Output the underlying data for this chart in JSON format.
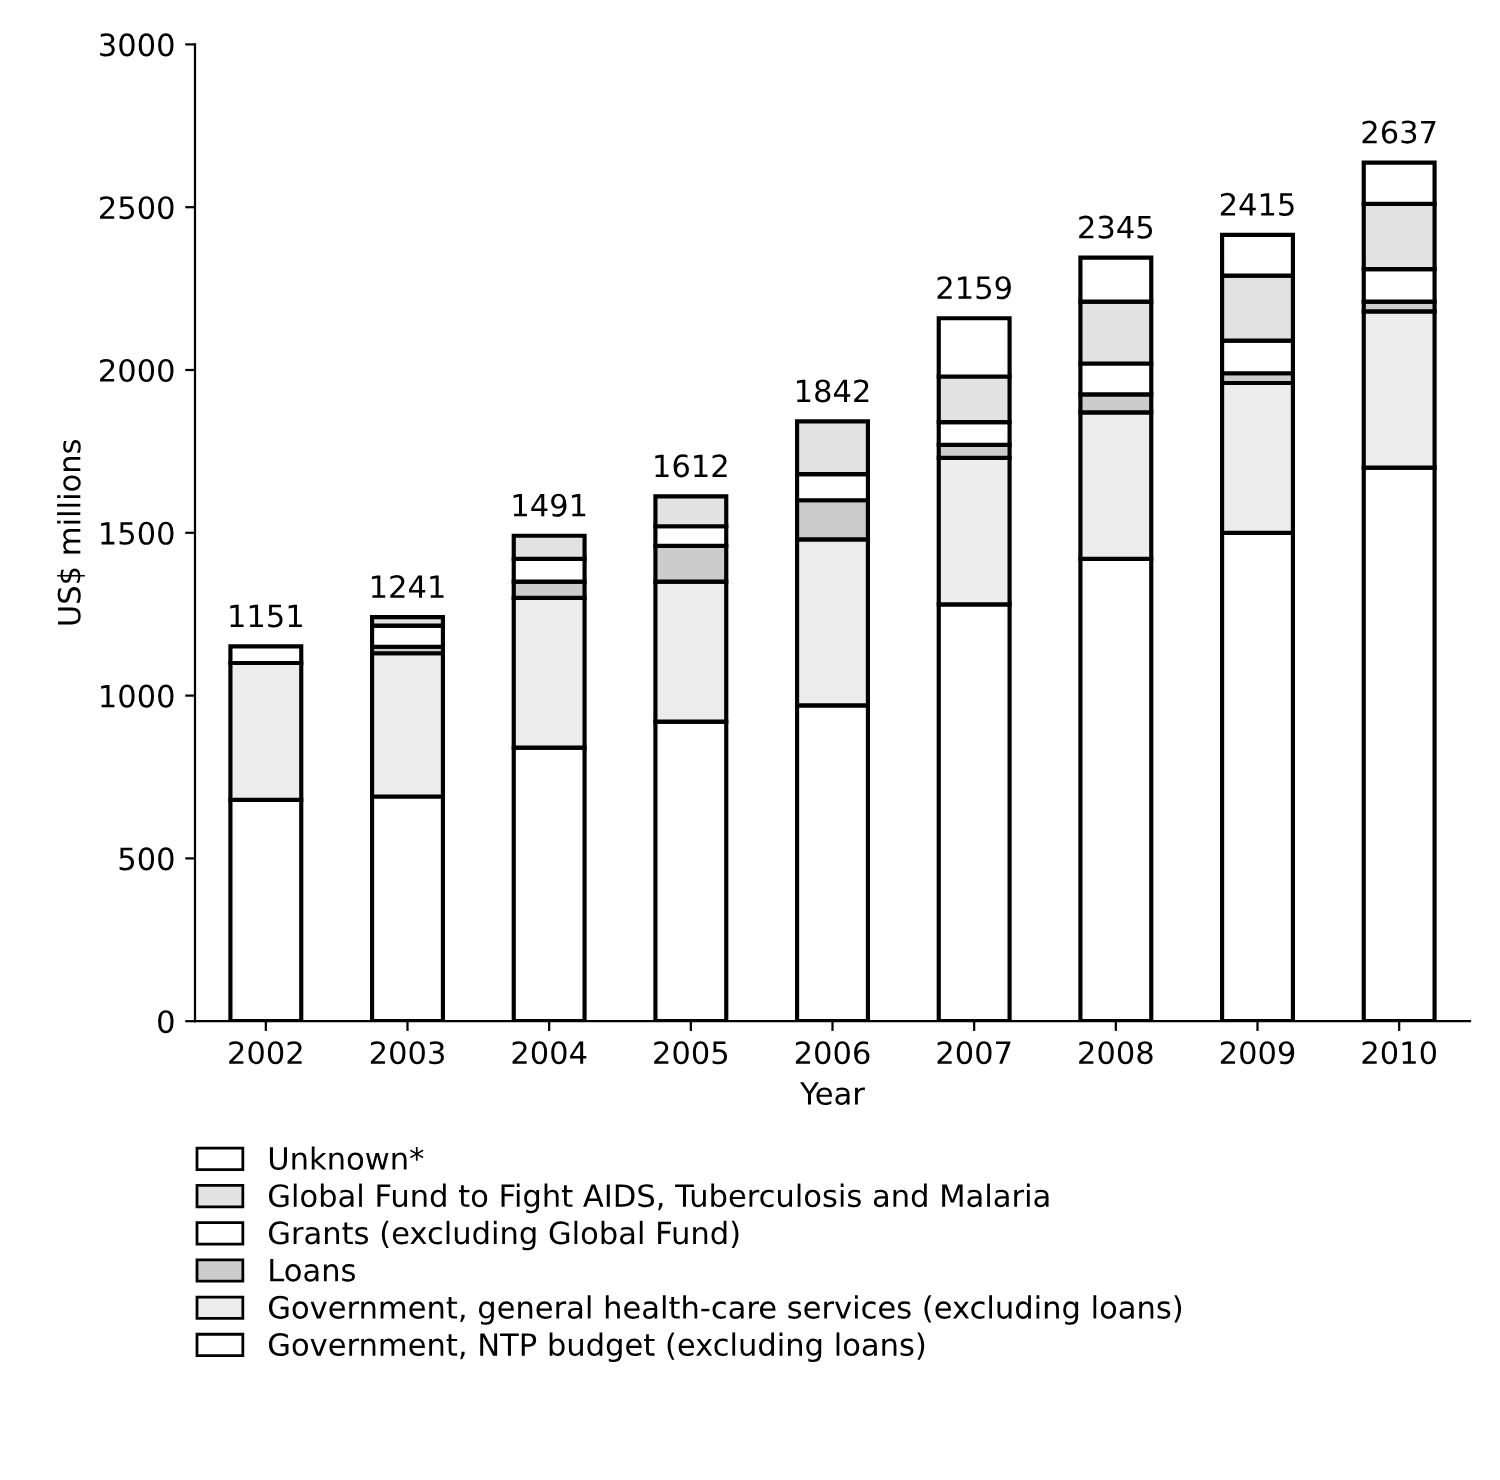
{
  "chart_data": {
    "type": "bar",
    "stacked": true,
    "xlabel": "Year",
    "ylabel": "US$ millions",
    "categories": [
      "2002",
      "2003",
      "2004",
      "2005",
      "2006",
      "2007",
      "2008",
      "2009",
      "2010"
    ],
    "series": [
      {
        "name": "Government, NTP budget (excluding loans)",
        "color": "#ffffff",
        "values": [
          680,
          690,
          840,
          920,
          970,
          1280,
          1420,
          1500,
          1700
        ]
      },
      {
        "name": "Government, general health-care services (excluding loans)",
        "color": "#ececec",
        "values": [
          420,
          440,
          460,
          430,
          510,
          450,
          450,
          460,
          480
        ]
      },
      {
        "name": "Loans",
        "color": "#cccccc",
        "values": [
          0,
          20,
          50,
          110,
          120,
          40,
          55,
          30,
          30
        ]
      },
      {
        "name": "Grants (excluding Global Fund)",
        "color": "#ffffff",
        "values": [
          0,
          65,
          70,
          60,
          80,
          70,
          95,
          100,
          100
        ]
      },
      {
        "name": "Global Fund to Fight AIDS, Tuberculosis and Malaria",
        "color": "#e2e2e2",
        "values": [
          0,
          26,
          71,
          92,
          162,
          140,
          190,
          200,
          200
        ]
      },
      {
        "name": "Unknown*",
        "color": "#ffffff",
        "values": [
          51,
          0,
          0,
          0,
          0,
          179,
          135,
          125,
          127
        ]
      }
    ],
    "totals": [
      "1151",
      "1241",
      "1491",
      "1612",
      "1842",
      "2159",
      "2345",
      "2415",
      "2637"
    ],
    "ylim": [
      0,
      3000
    ],
    "yticks": [
      0,
      500,
      1000,
      1500,
      2000,
      2500,
      3000
    ],
    "grid": false,
    "legend": "bottom"
  }
}
